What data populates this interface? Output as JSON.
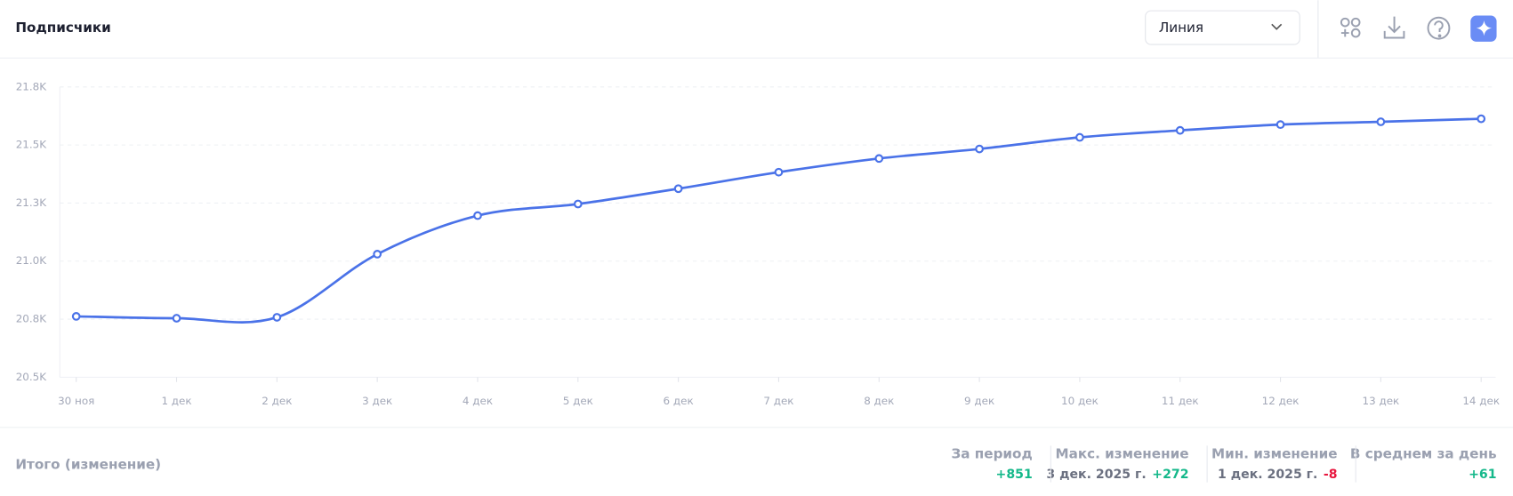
{
  "header": {
    "title": "Подписчики",
    "view_select": "Линия"
  },
  "chart_data": {
    "type": "line",
    "color": "#4a72e8",
    "categories": [
      "30 ноя",
      "1 дек",
      "2 дек",
      "3 дек",
      "4 дек",
      "5 дек",
      "6 дек",
      "7 дек",
      "8 дек",
      "9 дек",
      "10 дек",
      "11 дек",
      "12 дек",
      "13 дек",
      "14 дек"
    ],
    "values": [
      20762,
      20754,
      20758,
      21030,
      21196,
      21246,
      21312,
      21383,
      21442,
      21483,
      21533,
      21563,
      21588,
      21600,
      21613
    ],
    "ylim": [
      20500,
      21750
    ],
    "yticks": [
      {
        "value": 20500,
        "label": "20.5K"
      },
      {
        "value": 20750,
        "label": "20.8K"
      },
      {
        "value": 21000,
        "label": "21.0K"
      },
      {
        "value": 21250,
        "label": "21.3K"
      },
      {
        "value": 21500,
        "label": "21.5K"
      },
      {
        "value": 21750,
        "label": "21.8K"
      }
    ],
    "grid": true
  },
  "footer": {
    "label": "Итого (изменение)",
    "stats": [
      {
        "title": "За период",
        "value": "+851",
        "trend": "up"
      },
      {
        "title": "Макс. изменение",
        "date": "3 дек. 2025 г.",
        "value": "+272",
        "trend": "up"
      },
      {
        "title": "Мин. изменение",
        "date": "1 дек. 2025 г.",
        "value": "-8",
        "trend": "down"
      },
      {
        "title": "В среднем за день",
        "value": "+61",
        "trend": "up"
      }
    ]
  }
}
